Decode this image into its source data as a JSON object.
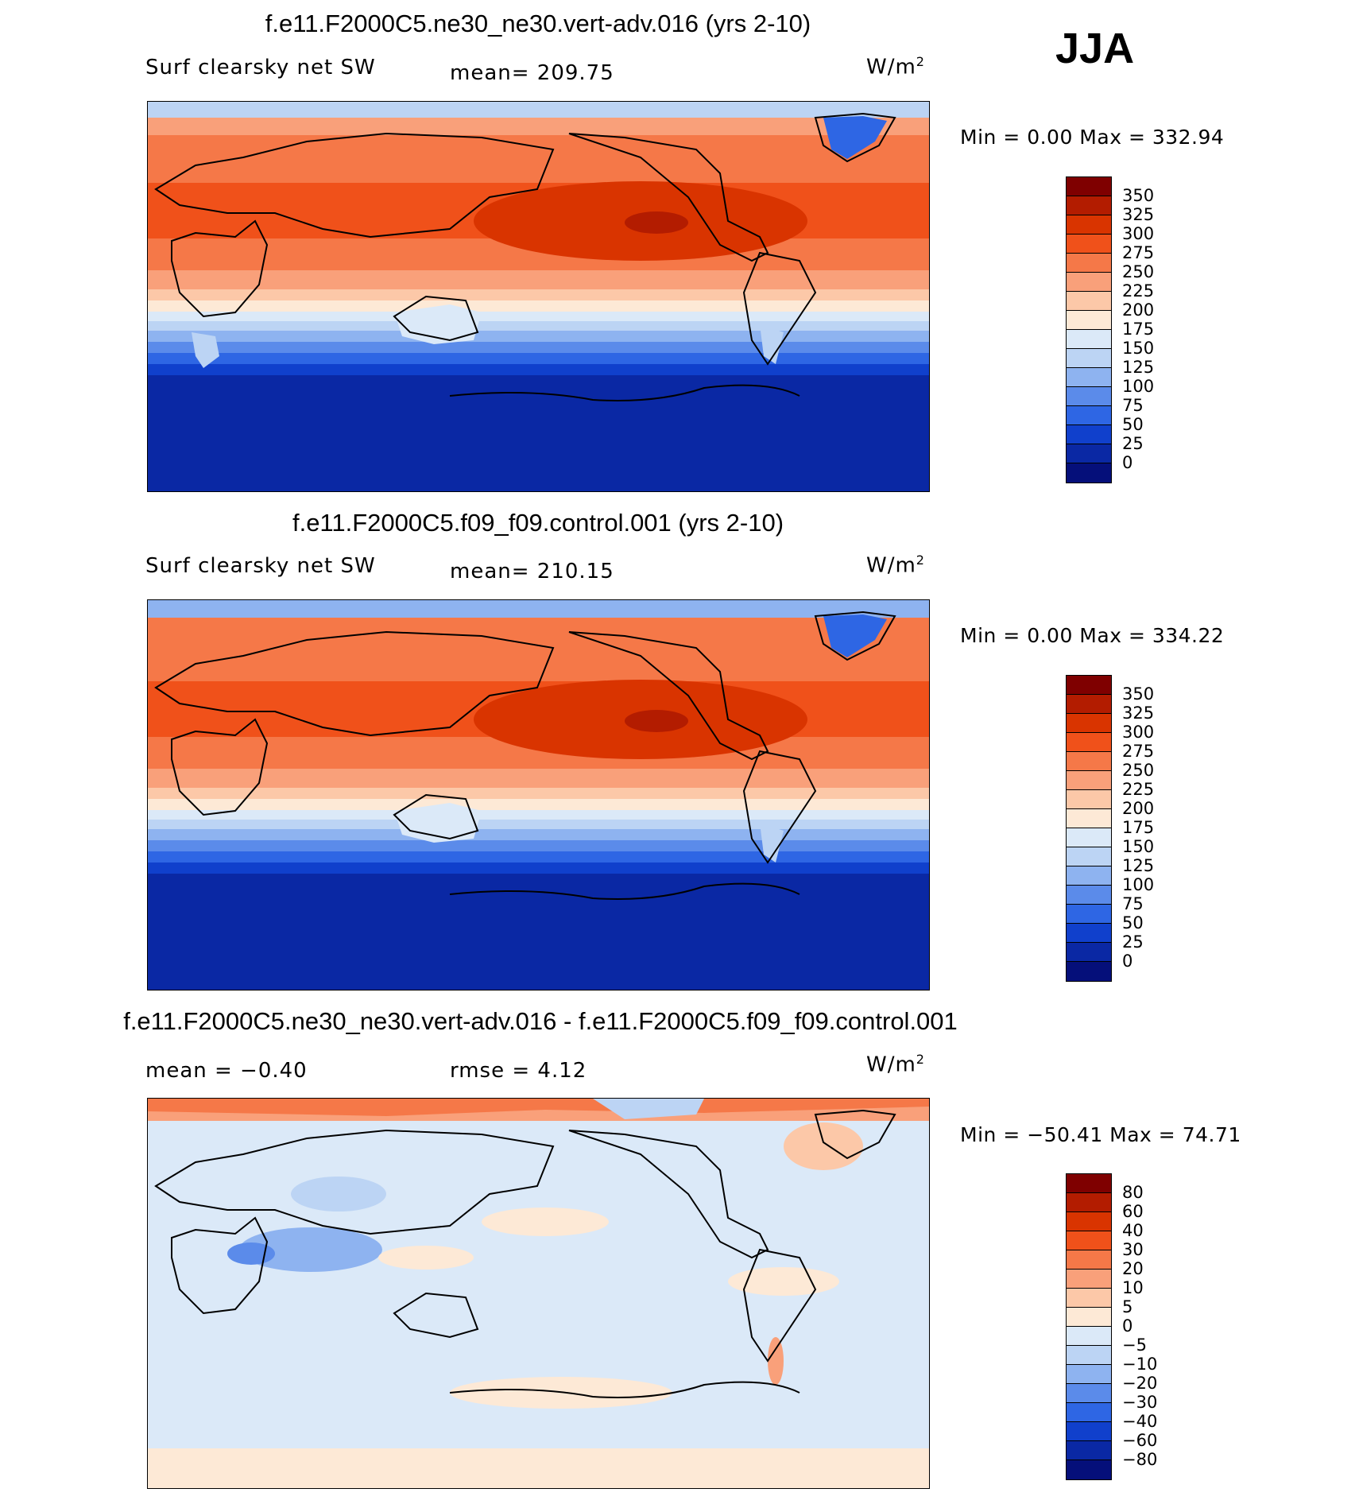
{
  "season": "JJA",
  "panels": [
    {
      "title": "f.e11.F2000C5.ne30_ne30.vert-adv.016 (yrs 2-10)",
      "variable": "Surf clearsky net SW",
      "stat_left": "",
      "stat_mid": "mean=  209.75",
      "units_base": "W/m",
      "units_exp": "2",
      "minmax": "Min  =     0.00  Max  =  332.94"
    },
    {
      "title": "f.e11.F2000C5.f09_f09.control.001 (yrs 2-10)",
      "variable": "Surf clearsky net SW",
      "stat_left": "",
      "stat_mid": "mean=  210.15",
      "units_base": "W/m",
      "units_exp": "2",
      "minmax": "Min  =     0.00  Max  =  334.22"
    },
    {
      "title": "f.e11.F2000C5.ne30_ne30.vert-adv.016 - f.e11.F2000C5.f09_f09.control.001",
      "variable": "",
      "stat_left": "mean  =   −0.40",
      "stat_mid": "rmse  =     4.12",
      "units_base": "W/m",
      "units_exp": "2",
      "minmax": "Min  = −50.41  Max  =   74.71"
    }
  ],
  "colorbars": {
    "abs": {
      "labels": [
        "350",
        "325",
        "300",
        "275",
        "250",
        "225",
        "200",
        "175",
        "150",
        "125",
        "100",
        "75",
        "50",
        "25",
        "0"
      ],
      "colors": [
        "#7f0000",
        "#b31c00",
        "#d93400",
        "#f0511a",
        "#f57848",
        "#f9a07a",
        "#fcc8a8",
        "#fde9d6",
        "#dbe9f8",
        "#bcd4f4",
        "#8eb3f0",
        "#5b8bea",
        "#2e66e4",
        "#1040cc",
        "#0a28a4",
        "#050f7a"
      ]
    },
    "diff": {
      "labels": [
        "80",
        "60",
        "40",
        "30",
        "20",
        "10",
        "5",
        "0",
        "−5",
        "−10",
        "−20",
        "−30",
        "−40",
        "−60",
        "−80"
      ],
      "colors": [
        "#7f0000",
        "#b31c00",
        "#d93400",
        "#f0511a",
        "#f57848",
        "#f9a07a",
        "#fcc8a8",
        "#fde9d6",
        "#dbe9f8",
        "#bcd4f4",
        "#8eb3f0",
        "#5b8bea",
        "#2e66e4",
        "#1040cc",
        "#0a28a4",
        "#050f7a"
      ]
    }
  },
  "chart_data": [
    {
      "type": "heatmap",
      "title": "f.e11.F2000C5.ne30_ne30.vert-adv.016 (yrs 2-10)",
      "field": "Surf clearsky net SW",
      "units": "W/m2",
      "mean": 209.75,
      "min": 0.0,
      "max": 332.94,
      "contour_levels": [
        0,
        25,
        50,
        75,
        100,
        125,
        150,
        175,
        200,
        225,
        250,
        275,
        300,
        325,
        350
      ]
    },
    {
      "type": "heatmap",
      "title": "f.e11.F2000C5.f09_f09.control.001 (yrs 2-10)",
      "field": "Surf clearsky net SW",
      "units": "W/m2",
      "mean": 210.15,
      "min": 0.0,
      "max": 334.22,
      "contour_levels": [
        0,
        25,
        50,
        75,
        100,
        125,
        150,
        175,
        200,
        225,
        250,
        275,
        300,
        325,
        350
      ]
    },
    {
      "type": "heatmap",
      "title": "f.e11.F2000C5.ne30_ne30.vert-adv.016 - f.e11.F2000C5.f09_f09.control.001",
      "units": "W/m2",
      "mean": -0.4,
      "rmse": 4.12,
      "min": -50.41,
      "max": 74.71,
      "contour_levels": [
        -80,
        -60,
        -40,
        -30,
        -20,
        -10,
        -5,
        0,
        5,
        10,
        20,
        30,
        40,
        60,
        80
      ]
    }
  ]
}
